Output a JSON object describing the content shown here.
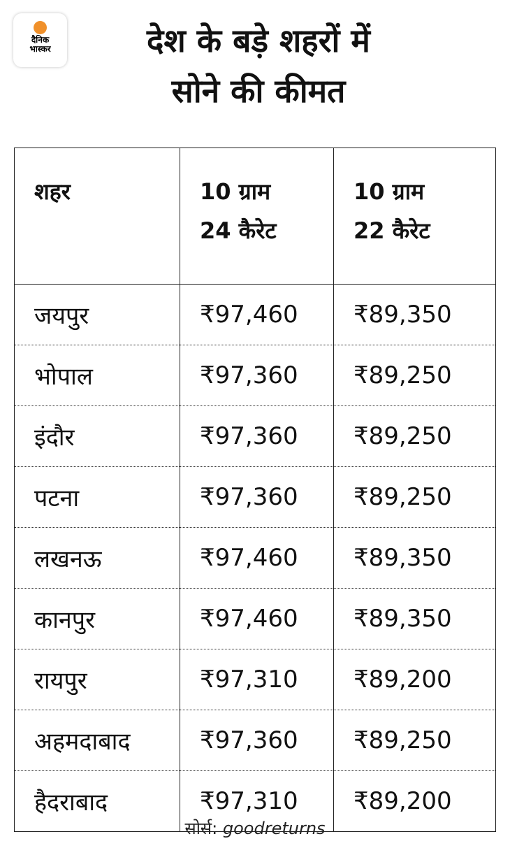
{
  "logo": {
    "line1": "दैनिक",
    "line2": "भास्कर",
    "accent": "#f0902a"
  },
  "title": {
    "line1": "देश के बड़े शहरों में",
    "line2": "सोने की कीमत"
  },
  "table": {
    "headers": [
      {
        "line1": "शहर",
        "line2": ""
      },
      {
        "line1": "10 ग्राम",
        "line2": "24 कैरेट"
      },
      {
        "line1": "10 ग्राम",
        "line2": "22 कैरेट"
      }
    ],
    "rows": [
      [
        "जयपुर",
        "₹97,460",
        "₹89,350"
      ],
      [
        "भोपाल",
        "₹97,360",
        "₹89,250"
      ],
      [
        "इंदौर",
        "₹97,360",
        "₹89,250"
      ],
      [
        "पटना",
        "₹97,360",
        "₹89,250"
      ],
      [
        "लखनऊ",
        "₹97,460",
        "₹89,350"
      ],
      [
        "कानपुर",
        "₹97,460",
        "₹89,350"
      ],
      [
        "रायपुर",
        "₹97,310",
        "₹89,200"
      ],
      [
        "अहमदाबाद",
        "₹97,360",
        "₹89,250"
      ],
      [
        "हैदराबाद",
        "₹97,310",
        "₹89,200"
      ]
    ]
  },
  "source": {
    "label": "सोर्स:",
    "value": "goodreturns"
  }
}
